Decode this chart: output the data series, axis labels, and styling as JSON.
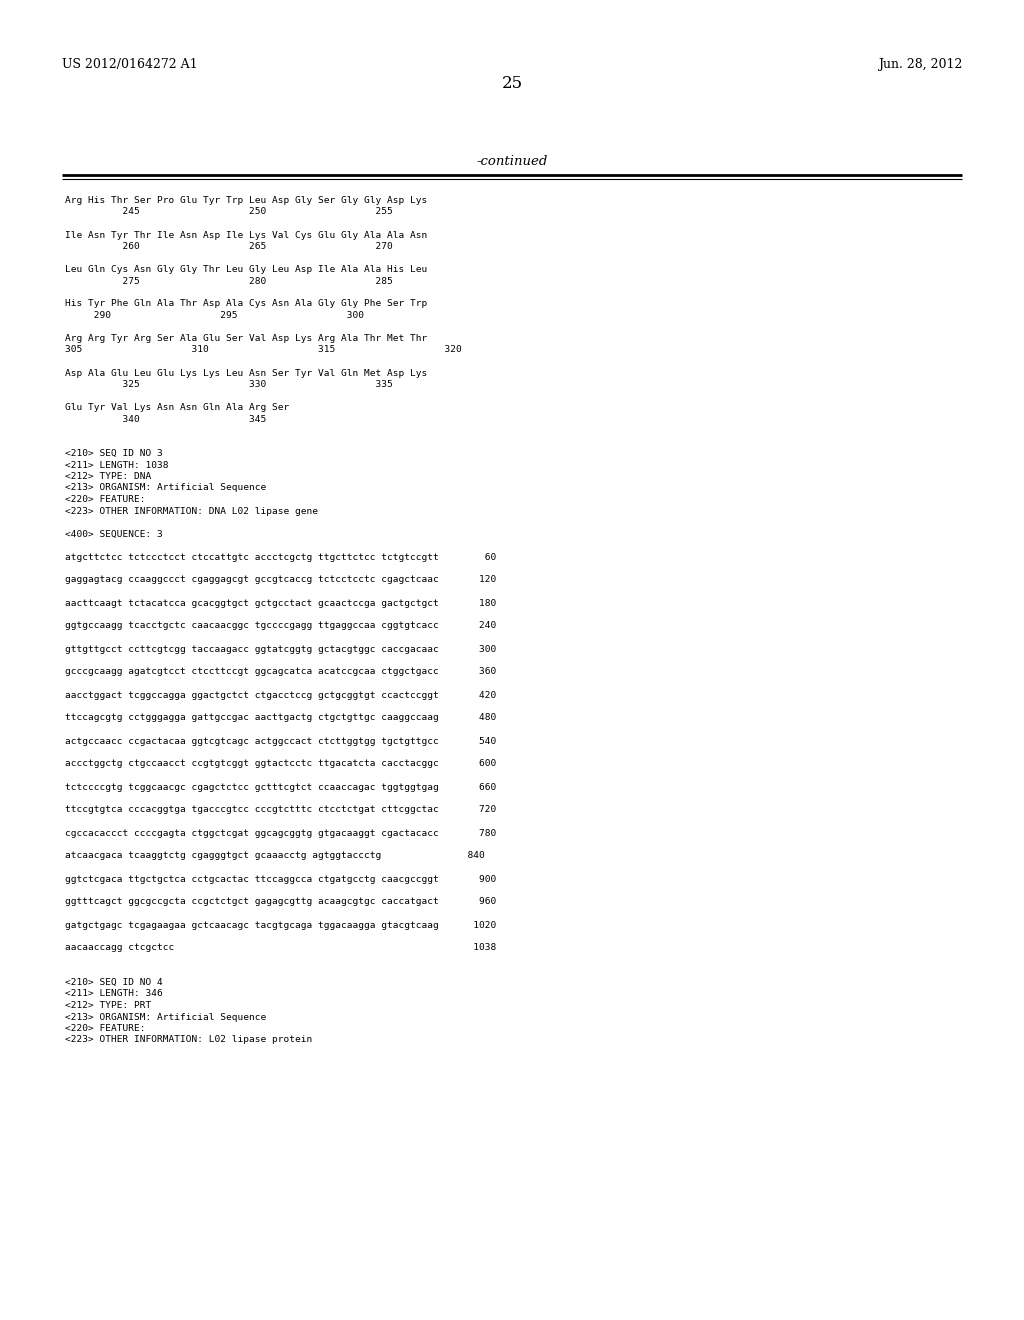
{
  "bg_color": "#ffffff",
  "header_left": "US 2012/0164272 A1",
  "header_right": "Jun. 28, 2012",
  "page_number": "25",
  "continued_label": "-continued",
  "body_lines": [
    "Arg His Thr Ser Pro Glu Tyr Trp Leu Asp Gly Ser Gly Gly Asp Lys",
    "          245                   250                   255",
    "",
    "Ile Asn Tyr Thr Ile Asn Asp Ile Lys Val Cys Glu Gly Ala Ala Asn",
    "          260                   265                   270",
    "",
    "Leu Gln Cys Asn Gly Gly Thr Leu Gly Leu Asp Ile Ala Ala His Leu",
    "          275                   280                   285",
    "",
    "His Tyr Phe Gln Ala Thr Asp Ala Cys Asn Ala Gly Gly Phe Ser Trp",
    "     290                   295                   300",
    "",
    "Arg Arg Tyr Arg Ser Ala Glu Ser Val Asp Lys Arg Ala Thr Met Thr",
    "305                   310                   315                   320",
    "",
    "Asp Ala Glu Leu Glu Lys Lys Leu Asn Ser Tyr Val Gln Met Asp Lys",
    "          325                   330                   335",
    "",
    "Glu Tyr Val Lys Asn Asn Gln Ala Arg Ser",
    "          340                   345",
    "",
    "",
    "<210> SEQ ID NO 3",
    "<211> LENGTH: 1038",
    "<212> TYPE: DNA",
    "<213> ORGANISM: Artificial Sequence",
    "<220> FEATURE:",
    "<223> OTHER INFORMATION: DNA L02 lipase gene",
    "",
    "<400> SEQUENCE: 3",
    "",
    "atgcttctcc tctccctcct ctccattgtc accctcgctg ttgcttctcc tctgtccgtt        60",
    "",
    "gaggagtacg ccaaggccct cgaggagcgt gccgtcaccg tctcctcctc cgagctcaac       120",
    "",
    "aacttcaagt tctacatcca gcacggtgct gctgcctact gcaactccga gactgctgct       180",
    "",
    "ggtgccaagg tcacctgctc caacaacggc tgccccgagg ttgaggccaa cggtgtcacc       240",
    "",
    "gttgttgcct ccttcgtcgg taccaagacc ggtatcggtg gctacgtggc caccgacaac       300",
    "",
    "gcccgcaagg agatcgtcct ctccttccgt ggcagcatca acatccgcaa ctggctgacc       360",
    "",
    "aacctggact tcggccagga ggactgctct ctgacctccg gctgcggtgt ccactccggt       420",
    "",
    "ttccagcgtg cctgggagga gattgccgac aacttgactg ctgctgttgc caaggccaag       480",
    "",
    "actgccaacc ccgactacaa ggtcgtcagc actggccact ctcttggtgg tgctgttgcc       540",
    "",
    "accctggctg ctgccaacct ccgtgtcggt ggtactcctc ttgacatcta cacctacggc       600",
    "",
    "tctccccgtg tcggcaacgc cgagctctcc gctttcgtct ccaaccagac tggtggtgag       660",
    "",
    "ttccgtgtca cccacggtga tgacccgtcc cccgtctttc ctcctctgat cttcggctac       720",
    "",
    "cgccacaccct ccccgagta ctggctcgat ggcagcggtg gtgacaaggt cgactacacc       780",
    "",
    "atcaacgaca tcaaggtctg cgagggtgct gcaaacctg agtggtaccctg               840",
    "",
    "ggtctcgaca ttgctgctca cctgcactac ttccaggcca ctgatgcctg caacgccggt       900",
    "",
    "ggtttcagct ggcgccgcta ccgctctgct gagagcgttg acaagcgtgc caccatgact       960",
    "",
    "gatgctgagc tcgagaagaa gctcaacagc tacgtgcaga tggacaagga gtacgtcaag      1020",
    "",
    "aacaaccagg ctcgctcc                                                    1038",
    "",
    "",
    "<210> SEQ ID NO 4",
    "<211> LENGTH: 346",
    "<212> TYPE: PRT",
    "<213> ORGANISM: Artificial Sequence",
    "<220> FEATURE:",
    "<223> OTHER INFORMATION: L02 lipase protein"
  ],
  "mono_font_size": 6.8,
  "header_font_size": 9.0,
  "page_num_font_size": 12,
  "continued_font_size": 9.5
}
